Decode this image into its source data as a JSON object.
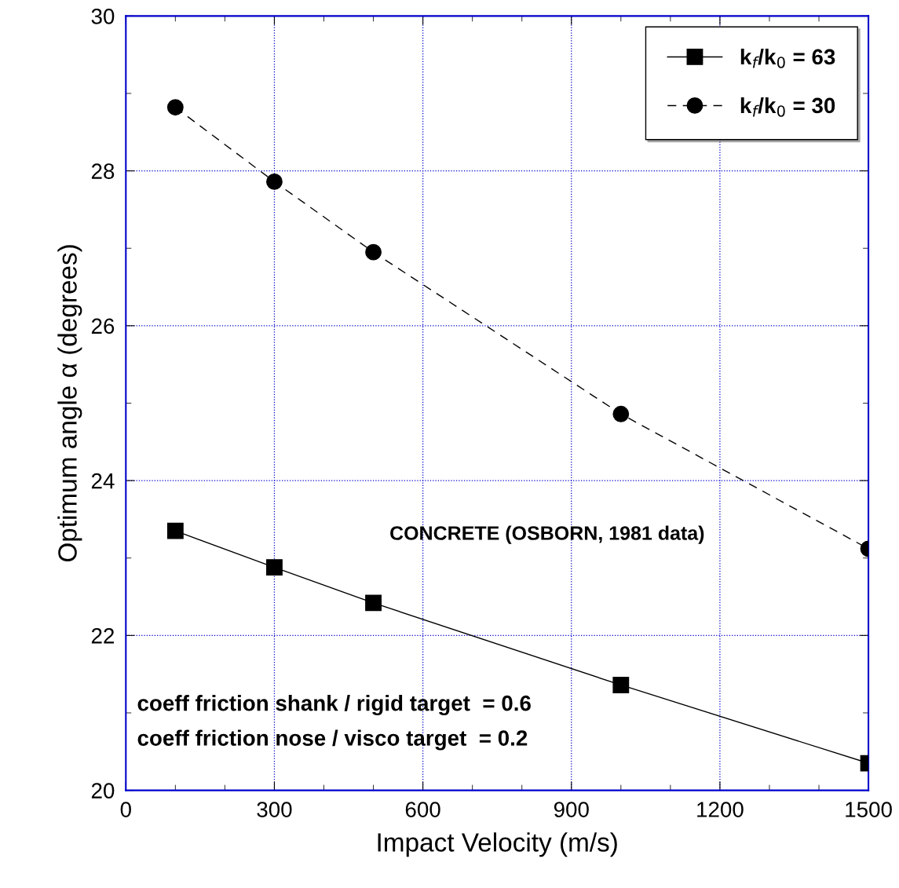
{
  "chart_data": {
    "type": "line",
    "xlabel": "Impact Velocity (m/s)",
    "ylabel": "Optimum angle α (degrees)",
    "xlim": [
      0,
      1500
    ],
    "xticks": [
      0,
      300,
      600,
      900,
      1200,
      1500
    ],
    "ylim": [
      20,
      30
    ],
    "yticks": [
      20,
      22,
      24,
      26,
      28,
      30
    ],
    "grid": true,
    "legend": "top right",
    "series": [
      {
        "name": "k$_{f}$/k$_{0}$ = 63",
        "color": "#000000",
        "marker": "square",
        "line_style": "solid",
        "x": [
          100,
          300,
          500,
          1000,
          1500
        ],
        "values": [
          23.35,
          22.88,
          22.42,
          21.36,
          20.35
        ]
      },
      {
        "name": "k$_{f}$/k$_{0}$ = 30",
        "color": "#000000",
        "marker": "circle",
        "line_style": "dashed",
        "x": [
          100,
          300,
          500,
          1000,
          1500
        ],
        "values": [
          28.82,
          27.86,
          26.95,
          24.86,
          23.12
        ]
      }
    ],
    "annotations": [
      "CONCRETE (OSBORN, 1981 data)",
      "coeff friction shank / rigid target  = 0.6",
      "coeff friction nose / visco target  = 0.2"
    ]
  }
}
